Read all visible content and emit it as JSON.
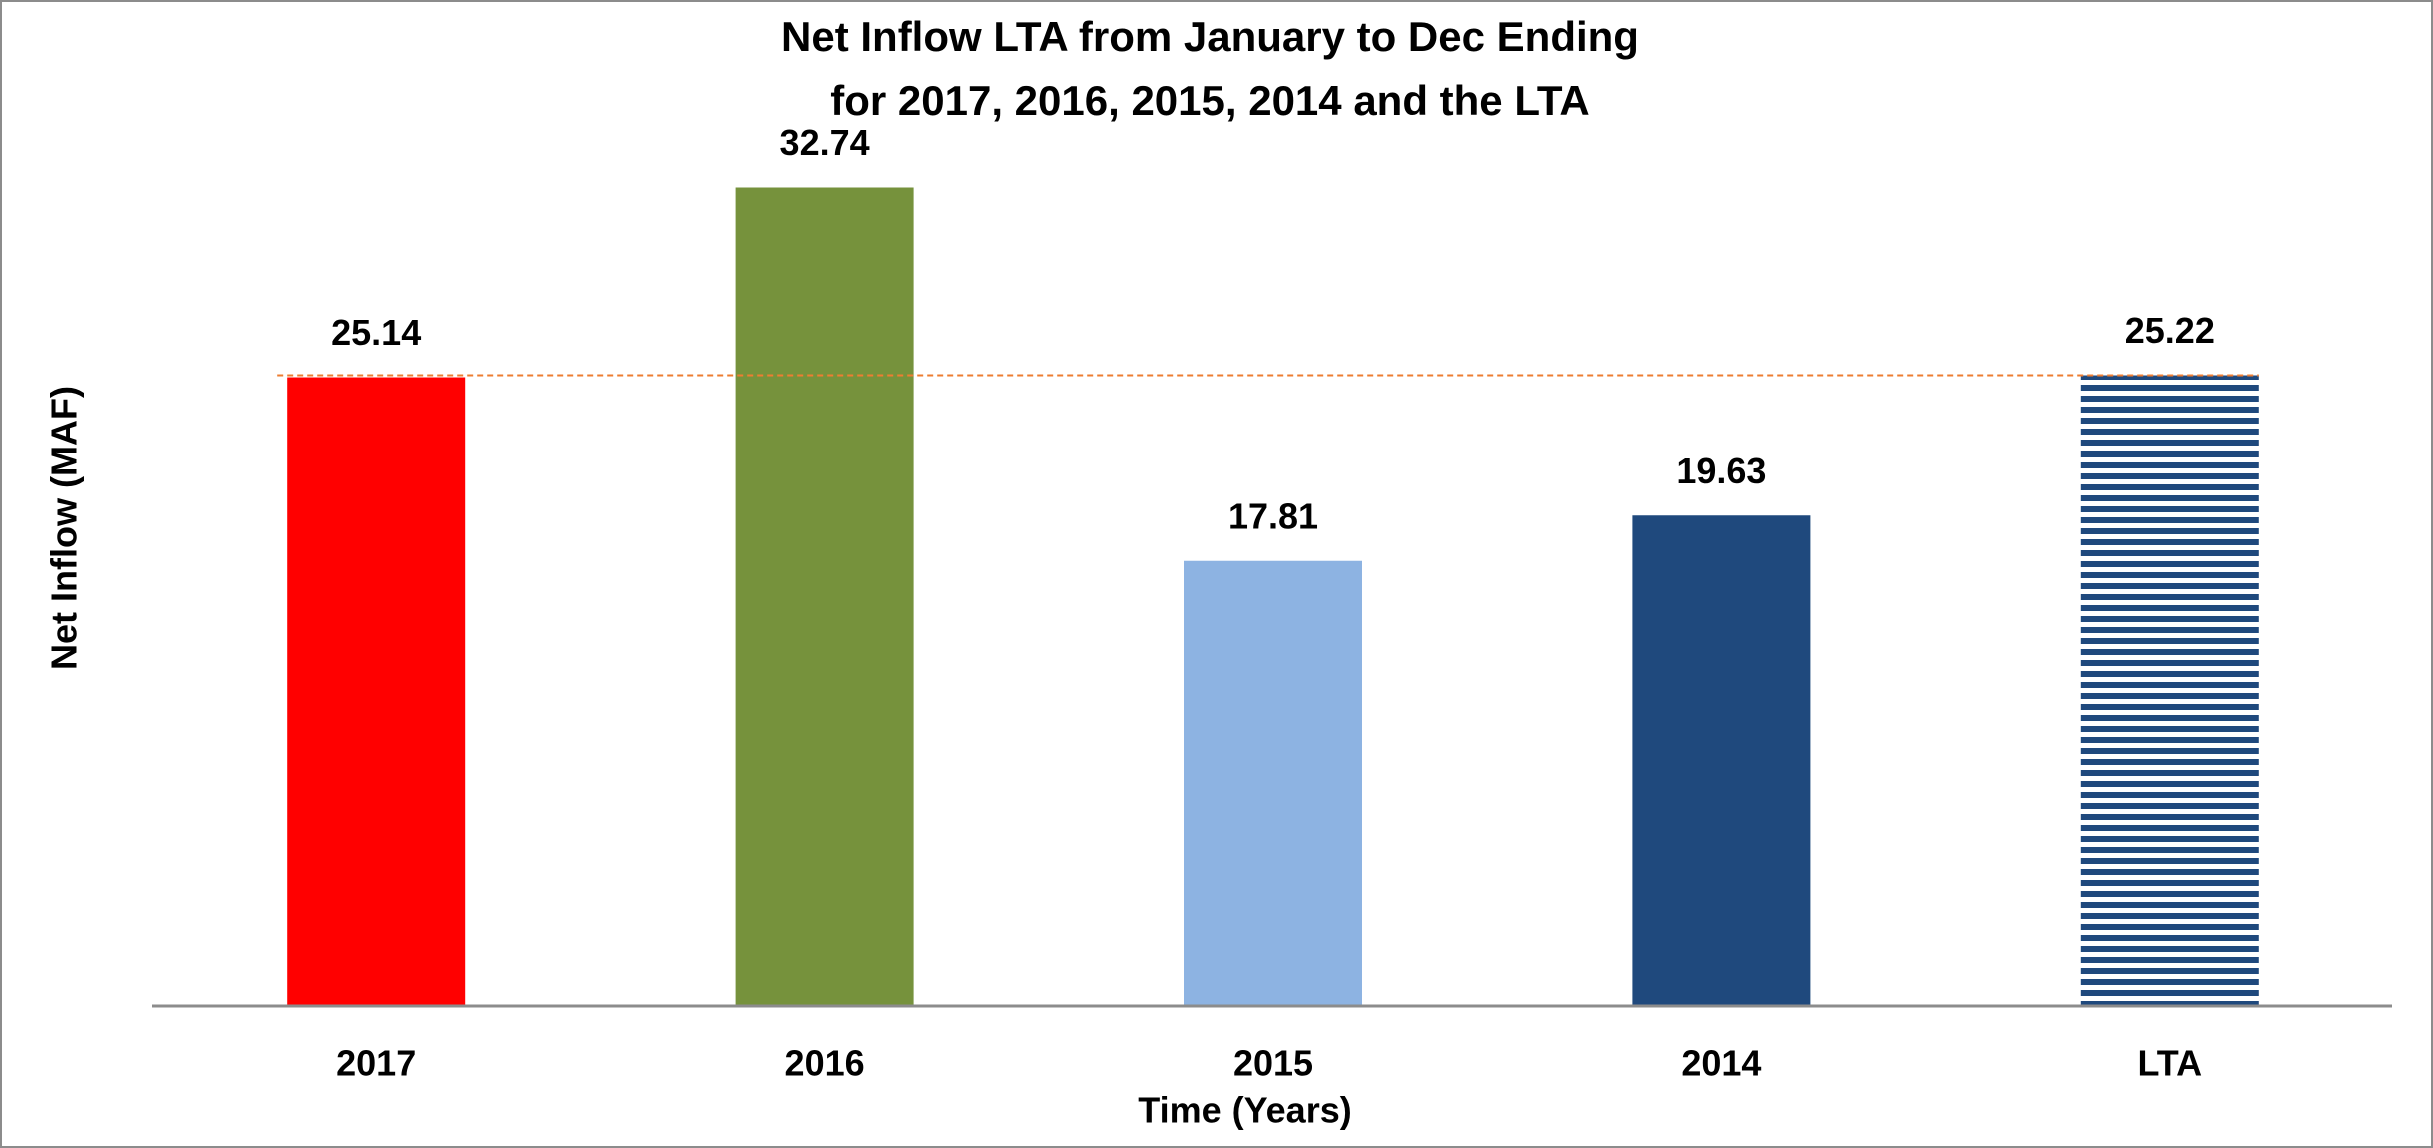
{
  "chart_data": {
    "type": "bar",
    "title": [
      "Net Inflow LTA from January to Dec Ending",
      "for 2017, 2016, 2015, 2014  and the LTA"
    ],
    "xlabel": "Time (Years)",
    "ylabel": "Net Inflow (MAF)",
    "categories": [
      "2017",
      "2016",
      "2015",
      "2014",
      "LTA"
    ],
    "values": [
      25.14,
      32.74,
      17.81,
      19.63,
      25.22
    ],
    "value_labels": [
      "25.14",
      "32.74",
      "17.81",
      "19.63",
      "25.22"
    ],
    "colors": [
      "#ff0000",
      "#76923c",
      "#8db3e2",
      "#1f497d",
      "#1f497d"
    ],
    "striped": [
      false,
      false,
      false,
      false,
      true
    ],
    "reference_line_color": "#ed7d31",
    "ylim": [
      0,
      35
    ]
  }
}
